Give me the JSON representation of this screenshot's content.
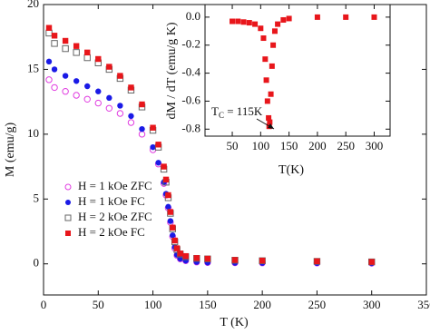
{
  "chart_data": [
    {
      "type": "scatter",
      "xlabel": "T (K)",
      "ylabel": "M (emu/g)",
      "xlim": [
        0,
        350
      ],
      "ylim": [
        -2.4,
        20
      ],
      "xticks": [
        0,
        50,
        100,
        150,
        200,
        250,
        300,
        350
      ],
      "yticks": [
        0,
        5,
        10,
        15,
        20
      ],
      "legend": "lower left",
      "x": [
        5,
        10,
        20,
        30,
        40,
        50,
        60,
        70,
        80,
        90,
        100,
        105,
        110,
        112,
        114,
        116,
        118,
        120,
        122,
        125,
        130,
        140,
        150,
        175,
        200,
        250,
        300
      ],
      "series": [
        {
          "name": "H = 1 kOe ZFC",
          "color": "#e03ce0",
          "marker": "circle-open",
          "values": [
            14.2,
            13.6,
            13.3,
            13.0,
            12.7,
            12.4,
            12.0,
            11.6,
            10.9,
            10.0,
            8.8,
            7.7,
            6.2,
            5.3,
            4.3,
            3.2,
            2.1,
            1.2,
            0.65,
            0.38,
            0.24,
            0.14,
            0.1,
            0.08,
            0.07,
            0.06,
            0.05
          ]
        },
        {
          "name": "H = 1 kOe FC",
          "color": "#1a1ae6",
          "marker": "circle",
          "values": [
            15.6,
            15.0,
            14.5,
            14.1,
            13.7,
            13.3,
            12.8,
            12.2,
            11.4,
            10.4,
            9.0,
            7.8,
            6.3,
            5.4,
            4.4,
            3.3,
            2.2,
            1.3,
            0.7,
            0.4,
            0.25,
            0.15,
            0.1,
            0.08,
            0.07,
            0.06,
            0.05
          ]
        },
        {
          "name": "H = 2 kOe ZFC",
          "color": "#666666",
          "marker": "square-open",
          "values": [
            17.8,
            17.0,
            16.6,
            16.3,
            15.9,
            15.5,
            15.0,
            14.3,
            13.4,
            12.1,
            10.3,
            9.0,
            7.3,
            6.3,
            5.1,
            3.9,
            2.7,
            1.7,
            1.1,
            0.75,
            0.55,
            0.42,
            0.38,
            0.28,
            0.24,
            0.19,
            0.15
          ]
        },
        {
          "name": "H = 2 kOe FC",
          "color": "#e8161b",
          "marker": "square",
          "values": [
            18.2,
            17.6,
            17.2,
            16.8,
            16.3,
            15.8,
            15.2,
            14.5,
            13.6,
            12.3,
            10.5,
            9.2,
            7.5,
            6.5,
            5.3,
            4.0,
            2.8,
            1.8,
            1.2,
            0.8,
            0.6,
            0.45,
            0.4,
            0.3,
            0.25,
            0.2,
            0.15
          ]
        }
      ]
    },
    {
      "type": "scatter",
      "xlabel": "T(K)",
      "ylabel": "dM / dT (emu/g K)",
      "xlim": [
        2,
        328
      ],
      "ylim": [
        -0.85,
        0.09
      ],
      "xticks": [
        50,
        100,
        150,
        200,
        250,
        300
      ],
      "yticks": [
        {
          "value": 0,
          "label": "0.0"
        },
        -0.2,
        -0.4,
        -0.6,
        -0.8
      ],
      "annotation": {
        "main": "T",
        "sub": "C",
        "rest": " = 115K"
      },
      "x": [
        50,
        60,
        70,
        80,
        90,
        100,
        105,
        108,
        110,
        112,
        114,
        115,
        116,
        118,
        120,
        122,
        125,
        130,
        140,
        150,
        200,
        250,
        300
      ],
      "series": [
        {
          "color": "#e8161b",
          "marker": "square",
          "values": [
            -0.03,
            -0.03,
            -0.035,
            -0.04,
            -0.05,
            -0.08,
            -0.15,
            -0.3,
            -0.45,
            -0.6,
            -0.72,
            -0.78,
            -0.75,
            -0.55,
            -0.35,
            -0.2,
            -0.1,
            -0.05,
            -0.02,
            -0.01,
            0,
            0,
            0
          ]
        }
      ]
    }
  ]
}
